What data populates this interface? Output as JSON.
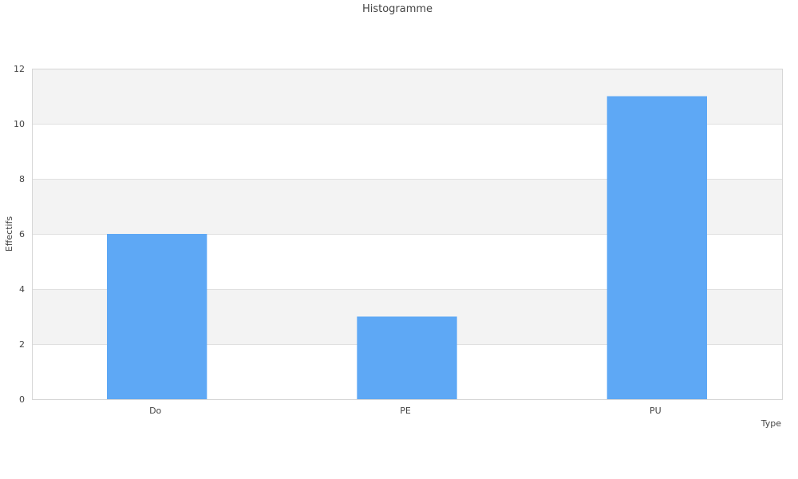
{
  "chart_data": {
    "type": "bar",
    "title": "Histogramme",
    "xlabel": "Type",
    "ylabel": "Effectifs",
    "categories": [
      "Do",
      "PE",
      "PU"
    ],
    "values": [
      6,
      3,
      11
    ],
    "ylim": [
      0,
      12
    ],
    "yticks": [
      "0",
      "2",
      "4",
      "6",
      "8",
      "10",
      "12"
    ],
    "grid": true,
    "band_colors": [
      "#ffffff",
      "#f3f3f3"
    ],
    "bar_color": "#5ea8f5"
  }
}
